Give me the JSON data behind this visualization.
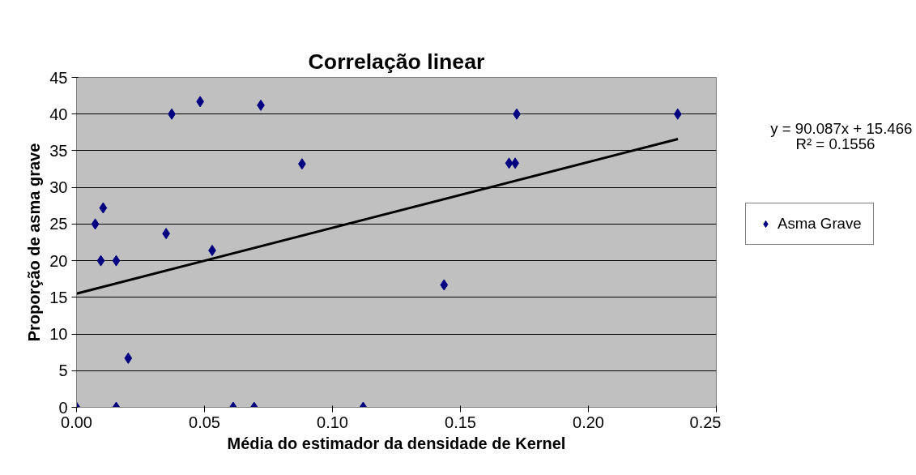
{
  "chart_data": {
    "type": "scatter",
    "title": "Correlação linear",
    "xlabel": "Média do estimador da densidade de Kernel",
    "ylabel": "Proporção de asma grave",
    "xlim": [
      0,
      0.25
    ],
    "ylim": [
      0,
      45
    ],
    "xticks": [
      {
        "value": 0,
        "label": "0.00"
      },
      {
        "value": 0.05,
        "label": "0.05"
      },
      {
        "value": 0.1,
        "label": "0.10"
      },
      {
        "value": 0.15,
        "label": "0.15"
      },
      {
        "value": 0.2,
        "label": "0.20"
      },
      {
        "value": 0.25,
        "label": "0.25"
      }
    ],
    "yticks": [
      0,
      5,
      10,
      15,
      20,
      25,
      30,
      35,
      40,
      45
    ],
    "grid": "y",
    "legend": "right",
    "annotations": [
      "y = 90.087x + 15.466",
      "R² = 0.1556"
    ],
    "series": [
      {
        "name": "Asma Grave",
        "marker": "diamond",
        "color": "#000080",
        "x": [
          0,
          0.0073,
          0.0095,
          0.0104,
          0.0155,
          0.0155,
          0.0202,
          0.035,
          0.0372,
          0.0483,
          0.053,
          0.0612,
          0.0694,
          0.072,
          0.0881,
          0.112,
          0.1436,
          0.169,
          0.1714,
          0.172,
          0.2349
        ],
        "values": [
          0,
          25,
          20,
          27.2,
          20,
          0,
          6.7,
          23.7,
          40,
          41.7,
          21.4,
          0,
          0,
          41.2,
          33.2,
          0,
          16.7,
          33.3,
          33.3,
          40,
          40
        ]
      },
      {
        "type": "line",
        "marker": "none",
        "color": "#000000",
        "x": [
          0,
          0.235
        ],
        "values": [
          15.5,
          36.6
        ]
      }
    ]
  }
}
